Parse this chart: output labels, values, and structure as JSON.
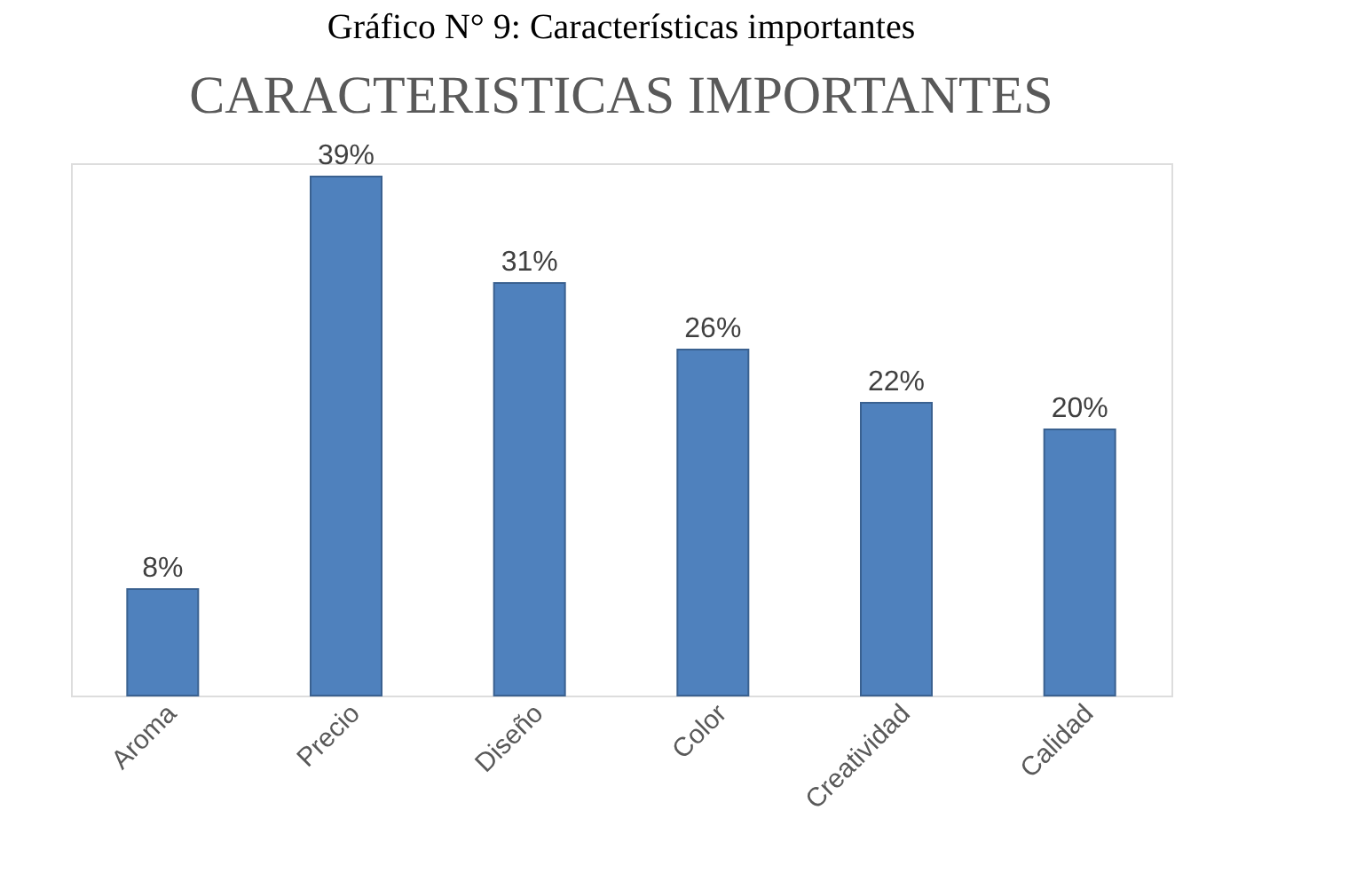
{
  "chart_data": {
    "type": "bar",
    "title": "CARACTERISTICAS IMPORTANTES",
    "annotations": [
      "Gráfico N° 9: Características importantes"
    ],
    "categories": [
      "Aroma",
      "Precio",
      "Diseño",
      "Color",
      "Creatividad",
      "Calidad"
    ],
    "values": [
      8,
      39,
      31,
      26,
      22,
      20
    ],
    "value_labels": [
      "8%",
      "39%",
      "31%",
      "26%",
      "22%",
      "20%"
    ],
    "color": "#4f81bd",
    "grid": false
  }
}
